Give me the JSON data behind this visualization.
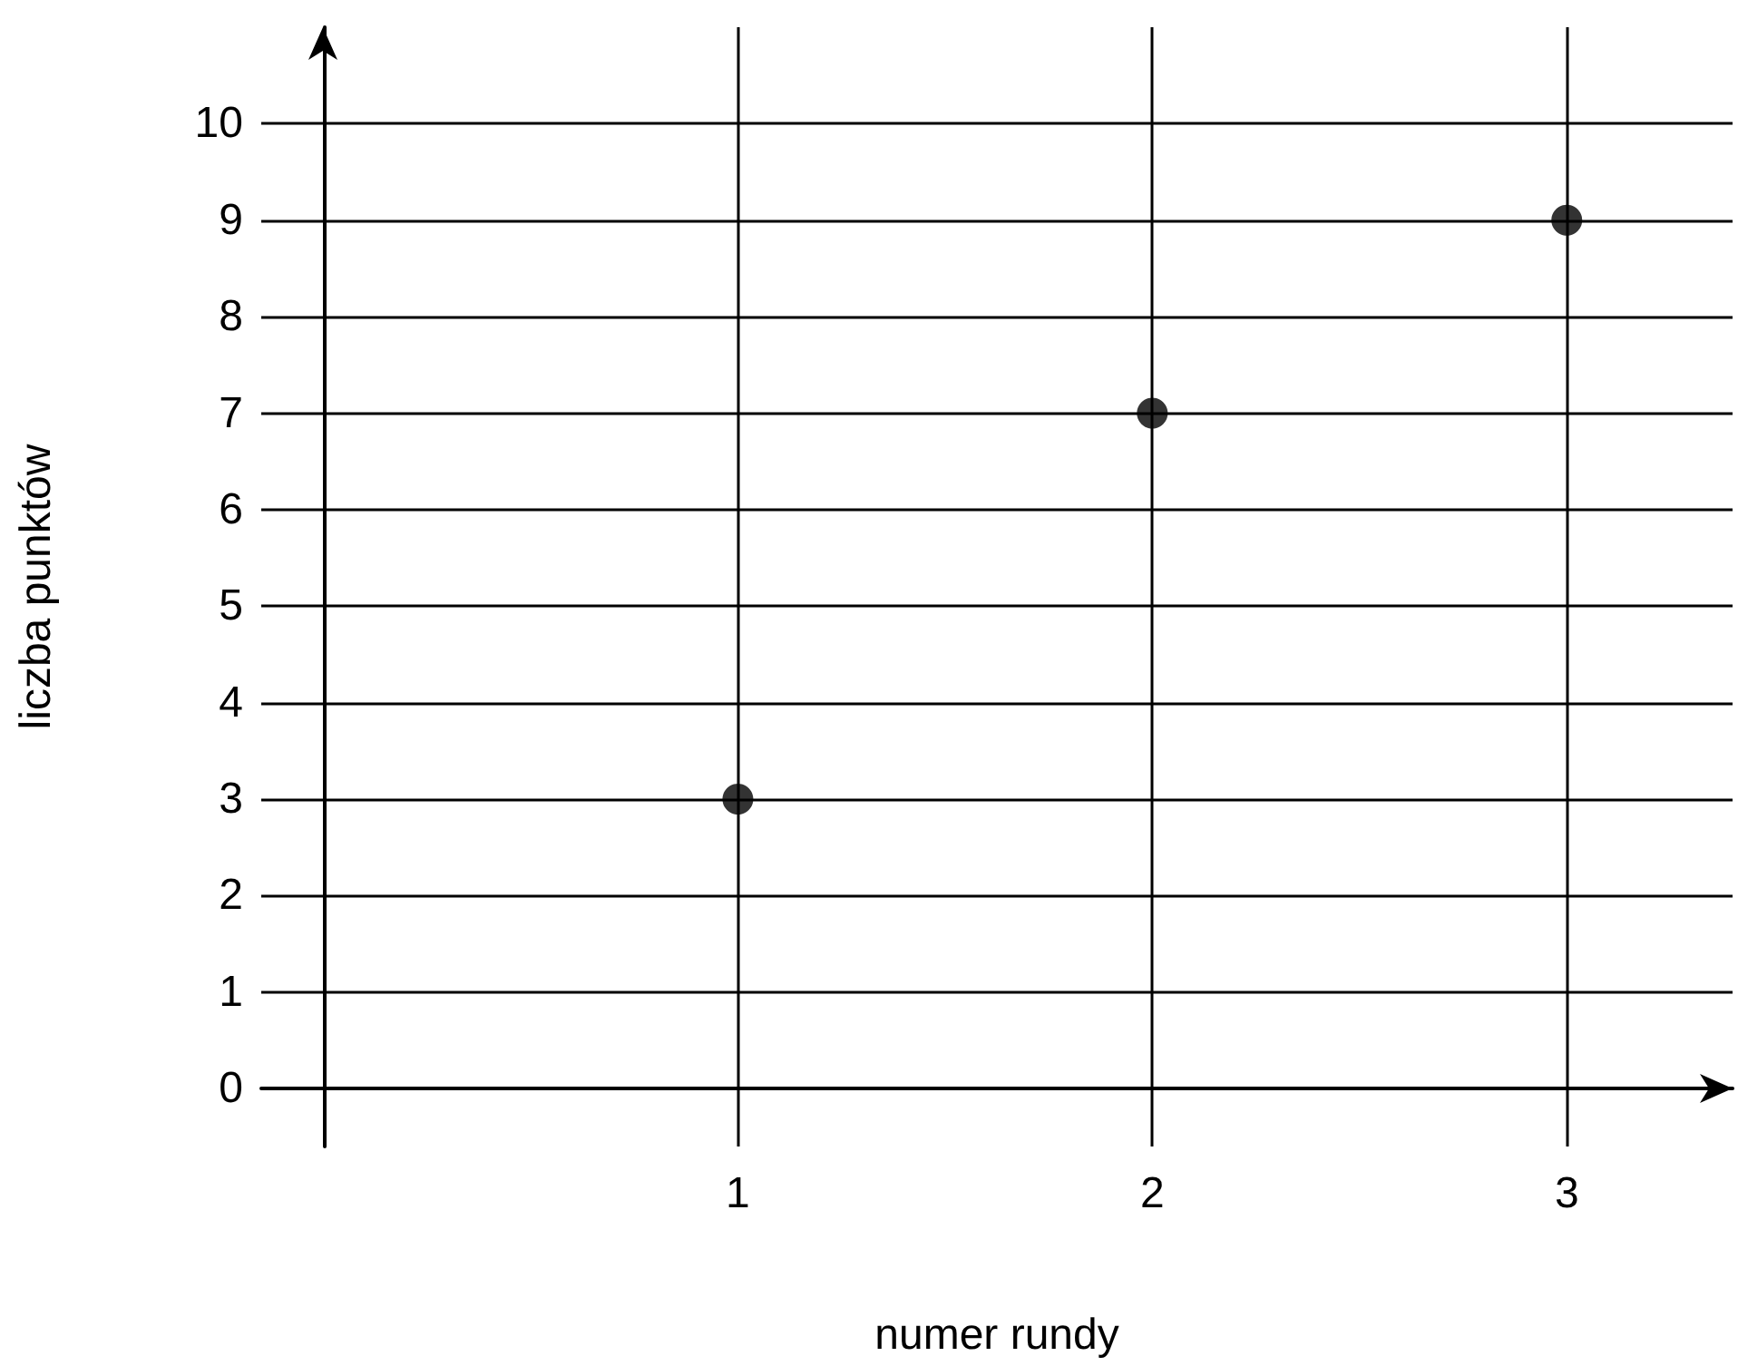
{
  "chart_data": {
    "type": "scatter",
    "xlabel": "numer rundy",
    "ylabel": "liczba punktów",
    "x": [
      1,
      2,
      3
    ],
    "values": [
      3,
      7,
      9
    ],
    "color": "#000000",
    "marker": "circle",
    "xlim": [
      -0.15,
      3.4
    ],
    "ylim": [
      -0.6,
      11
    ],
    "xticks": [
      1,
      2,
      3
    ],
    "yticks": [
      0,
      1,
      2,
      3,
      4,
      5,
      6,
      7,
      8,
      9,
      10
    ],
    "grid": true
  }
}
